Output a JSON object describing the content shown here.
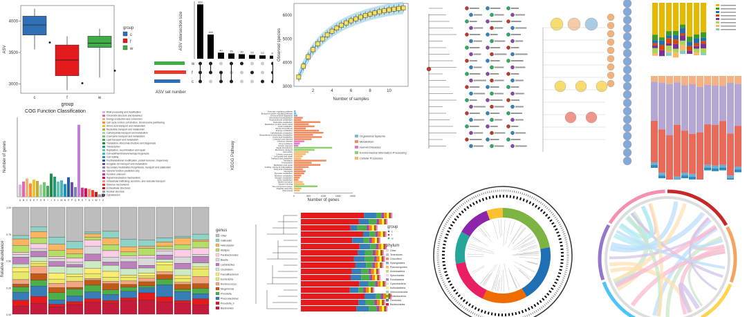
{
  "colors": {
    "box_c": "#2f6fb5",
    "box_f": "#e41a1c",
    "box_w": "#3fae49",
    "upset_bar": "#000000",
    "upset_c": "#2f6fb5",
    "upset_f": "#e8392b",
    "upset_w": "#3fae49",
    "rare_box": "#f5e15a",
    "rare_band": "#9fd3e6",
    "kegg_organismal": "#7fb3d5",
    "kegg_metabolism": "#f08a5d",
    "kegg_human": "#e378c8",
    "kegg_env": "#8fce6a",
    "kegg_cellular": "#f5b86b",
    "stack_colors": [
      "#bdbdbd",
      "#8dd3c7",
      "#fdb462",
      "#b3de69",
      "#fccde5",
      "#d9d9d9",
      "#bc80bd",
      "#ccebc5",
      "#ffed6f",
      "#e9e96b",
      "#f4a582",
      "#bf5b17",
      "#4daf4a",
      "#377eb8",
      "#e41a1c",
      "#c51b3a"
    ]
  },
  "panels": {
    "boxplot": {
      "chart_data": {
        "type": "box",
        "ylabel": "ASV",
        "xlabel": "group",
        "y_ticks": [
          "3000",
          "3500",
          "4000"
        ],
        "categories": [
          "c",
          "f",
          "w"
        ],
        "legend_title": "group",
        "boxes": [
          {
            "name": "c",
            "min": 3550,
            "q1": 3780,
            "median": 3940,
            "q3": 4080,
            "max": 4200
          },
          {
            "name": "f",
            "min": 2900,
            "q1": 3130,
            "median": 3380,
            "q3": 3620,
            "max": 3760
          },
          {
            "name": "w",
            "min": 3100,
            "q1": 3580,
            "median": 3650,
            "q3": 3760,
            "max": 3880
          }
        ],
        "ylim": [
          2850,
          4250
        ]
      }
    },
    "upset": {
      "chart_data": {
        "type": "bar",
        "ylabel": "ASV intersection size",
        "xlabel": "ASV set number",
        "sets": [
          "w",
          "f",
          "c"
        ],
        "values": [
          360,
          160,
          40,
          35,
          30,
          25,
          22,
          20
        ],
        "set_sizes": [
          0.88,
          0.92,
          0.75
        ],
        "ylim": [
          0,
          380
        ]
      }
    },
    "rarefaction": {
      "chart_data": {
        "type": "box",
        "ylabel": "Observed species",
        "xlabel": "Number of samples",
        "x_ticks": [
          "2",
          "4",
          "6",
          "8",
          "10"
        ],
        "y_ticks": [
          "3000",
          "4000",
          "5000",
          "6000"
        ],
        "x": [
          1,
          2,
          3,
          4,
          5,
          6,
          7,
          8,
          9,
          10,
          11,
          12,
          13,
          14,
          15,
          16,
          17,
          18,
          19,
          20,
          21,
          22,
          23
        ],
        "median": [
          3400,
          3850,
          4250,
          4550,
          4800,
          5000,
          5180,
          5330,
          5460,
          5580,
          5680,
          5770,
          5850,
          5920,
          5990,
          6050,
          6100,
          6150,
          6190,
          6230,
          6260,
          6290,
          6310
        ],
        "xlim": [
          0,
          24
        ],
        "ylim": [
          3000,
          6500
        ]
      }
    },
    "cog": {
      "chart_data": {
        "type": "bar",
        "title": "COG Function Classification",
        "ylabel": "Number of genes",
        "categories": [
          "A",
          "B",
          "C",
          "D",
          "E",
          "F",
          "G",
          "H",
          "I",
          "J",
          "K",
          "L",
          "M",
          "N",
          "O",
          "P",
          "Q",
          "R",
          "S",
          "T",
          "U",
          "V",
          "W",
          "Y",
          "Z"
        ],
        "values": [
          20,
          25,
          30,
          22,
          28,
          26,
          20,
          24,
          18,
          38,
          33,
          25,
          27,
          21,
          32,
          24,
          16,
          118,
          15,
          14,
          13,
          11,
          8,
          4,
          5
        ],
        "ylim": [
          0,
          130
        ],
        "legend": [
          "RNA processing and modification",
          "Chromatin structure and dynamics",
          "Energy production and conversion",
          "Cell cycle control, cell division, chromosome partitioning",
          "Amino acid transport and metabolism",
          "Nucleotide transport and metabolism",
          "Carbohydrate transport and metabolism",
          "Coenzyme transport and metabolism",
          "Lipid transport and metabolism",
          "Translation, ribosomal structure and biogenesis",
          "Transcription",
          "Replication, recombination and repair",
          "Cell wall/membrane/envelope biogenesis",
          "Cell motility",
          "Posttranslational modification, protein turnover, chaperones",
          "Inorganic ion transport and metabolism",
          "Secondary metabolites biosynthesis, transport and catabolism",
          "General function prediction only",
          "Function unknown",
          "Signal transduction mechanisms",
          "Intracellular trafficking, secretion, and vesicular transport",
          "Defense mechanisms",
          "Extracellular structures",
          "Nuclear structure",
          "Cytoskeleton"
        ]
      }
    },
    "kegg": {
      "chart_data": {
        "type": "bar",
        "orientation": "horizontal",
        "ylabel": "KEGG Pathway",
        "xlabel": "Number of genes",
        "x_ticks": [
          "0",
          "500",
          "1000",
          "1500",
          "2000"
        ],
        "xlim": [
          0,
          2000
        ],
        "legend": [
          "Organismal Systems",
          "Metabolism",
          "Human Diseases",
          "Environmental Information Processing",
          "Cellular Processes"
        ],
        "categories": [
          "Immunity, regulating pathway",
          "Endocrine system signaling pathway",
          "Environmental adaptation",
          "Xenobiotics biodegradation",
          "Terpenoids and polyketides",
          "Nucleotide metabolism",
          "Metabolism of other amino acids",
          "Lipid metabolism",
          "Glycan biosynthesis",
          "Energy metabolism",
          "Carbohydrate metabolism",
          "Biosynthesis of secondary metabolites",
          "Amino acid metabolism",
          "Cofactors and vitamins",
          "Infectious disease",
          "Drug resistance",
          "Cancer overview",
          "Signal transduction",
          "Membrane transport",
          "Cell motility",
          "Cellular community",
          "Cell growth and death",
          "Transport and catabolism",
          "Translation",
          "Transcription",
          "Replication and repair",
          "Folding, sorting and degradation",
          "Fatty acid metabolism",
          "Glycolysis",
          "Pyruvate metabolism",
          "Methane metabolism",
          "Nitrogen metabolism",
          "Sulfur metabolism",
          "Biofilm formation",
          "Quorum sensing",
          "Two-component system",
          "Flagellar assembly",
          "Chemotaxis"
        ],
        "values": [
          60,
          80,
          120,
          300,
          250,
          900,
          500,
          700,
          400,
          850,
          1000,
          650,
          950,
          600,
          350,
          200,
          150,
          1300,
          700,
          500,
          400,
          300,
          250,
          1100,
          600,
          900,
          500,
          300,
          400,
          350,
          250,
          200,
          150,
          300,
          350,
          800,
          250,
          200
        ],
        "groups": [
          0,
          0,
          0,
          1,
          1,
          1,
          1,
          1,
          1,
          1,
          1,
          1,
          1,
          1,
          2,
          2,
          2,
          3,
          3,
          4,
          4,
          4,
          4,
          1,
          1,
          1,
          1,
          1,
          1,
          1,
          1,
          1,
          1,
          4,
          4,
          3,
          4,
          4
        ]
      }
    },
    "stacked_left": {
      "chart_data": {
        "type": "bar",
        "stacked": true,
        "ylabel": "Relative abundance",
        "legend_title": "genus",
        "y_ticks": [
          "0.00",
          "0.25",
          "0.50",
          "0.75",
          "1.00"
        ],
        "ylim": [
          0,
          1
        ],
        "legend": [
          "Other",
          "Gallicaulis",
          "Helicobacter",
          "Alistipes",
          "Parabacteroides",
          "Blautia",
          "Lactobacillus",
          "Clostridium",
          "Faecalibacterium",
          "Escherichia",
          "Ruminococcus",
          "Megamonas",
          "Prevotella",
          "Phascolarctobacterium",
          "Prevotella_9",
          "Bacteroides"
        ]
      }
    },
    "tree_stack": {
      "chart_data": {
        "type": "bar",
        "stacked": true,
        "orientation": "horizontal",
        "legend_title": "phylum",
        "legend_title_2": "group",
        "legend_group": [
          "c",
          "f",
          "w"
        ],
        "legend": [
          "Other",
          "Tenericutes",
          "Chloroflexi",
          "Synergistetes",
          "Planctomycetes",
          "Acidobacteria",
          "Spirochaetes",
          "Fusobacteria",
          "Cyanobacteria",
          "Actinobacteria",
          "Verrucomicrobia",
          "Proteobacteria",
          "Firmicutes",
          "Bacteroidetes"
        ]
      }
    },
    "stacked_right_top": {
      "chart_data": {
        "type": "bar",
        "stacked": true,
        "xlabel": "Sample",
        "ylabel": "Proportion"
      }
    },
    "stacked_right_mid": {
      "chart_data": {
        "type": "bar",
        "stacked": true,
        "ylabel": "Proportion",
        "xlabel": "Sample"
      }
    }
  }
}
